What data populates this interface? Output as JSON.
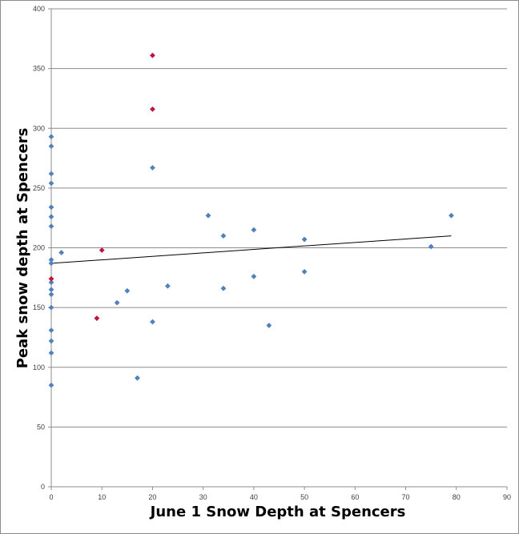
{
  "chart_data": {
    "type": "scatter",
    "title": "",
    "xlabel": "June 1 Snow Depth at Spencers",
    "ylabel": "Peak snow depth at Spencers",
    "xlim": [
      0,
      90
    ],
    "ylim": [
      0,
      400
    ],
    "xticks": [
      0,
      10,
      20,
      30,
      40,
      50,
      60,
      70,
      80,
      90
    ],
    "yticks": [
      0,
      50,
      100,
      150,
      200,
      250,
      300,
      350,
      400
    ],
    "grid": "horizontal",
    "legend": "none",
    "series": [
      {
        "color": "#4f81bd",
        "marker": "diamond",
        "points": [
          [
            0,
            293
          ],
          [
            0,
            285
          ],
          [
            0,
            262
          ],
          [
            0,
            254
          ],
          [
            0,
            234
          ],
          [
            0,
            226
          ],
          [
            0,
            218
          ],
          [
            0,
            190
          ],
          [
            0,
            187
          ],
          [
            0,
            171
          ],
          [
            0,
            165
          ],
          [
            0,
            161
          ],
          [
            0,
            150
          ],
          [
            0,
            131
          ],
          [
            0,
            122
          ],
          [
            0,
            112
          ],
          [
            0,
            85
          ],
          [
            2,
            196
          ],
          [
            13,
            154
          ],
          [
            15,
            164
          ],
          [
            17,
            91
          ],
          [
            20,
            267
          ],
          [
            20,
            138
          ],
          [
            23,
            168
          ],
          [
            31,
            227
          ],
          [
            34,
            210
          ],
          [
            34,
            166
          ],
          [
            40,
            215
          ],
          [
            40,
            176
          ],
          [
            43,
            135
          ],
          [
            50,
            207
          ],
          [
            50,
            180
          ],
          [
            75,
            201
          ],
          [
            79,
            227
          ]
        ]
      },
      {
        "color": "#c0143c",
        "marker": "diamond",
        "points": [
          [
            20,
            361
          ],
          [
            20,
            316
          ],
          [
            10,
            198
          ],
          [
            0,
            174
          ],
          [
            9,
            141
          ]
        ]
      }
    ],
    "trendline": {
      "type": "linear",
      "color": "#000000",
      "x": [
        0,
        79
      ],
      "y": [
        187,
        210
      ]
    }
  }
}
